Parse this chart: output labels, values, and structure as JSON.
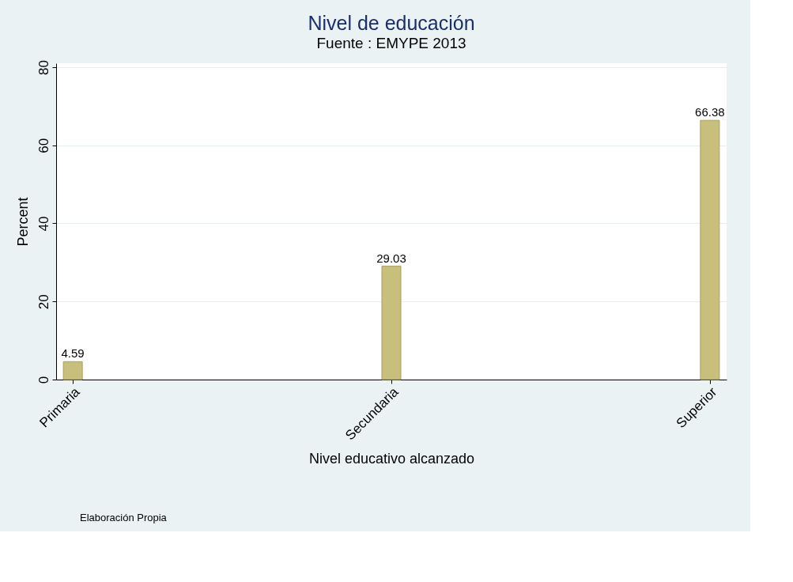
{
  "chart_data": {
    "type": "bar",
    "title": "Nivel de educación",
    "subtitle": "Fuente : EMYPE 2013",
    "xlabel": "Nivel educativo alcanzado",
    "ylabel": "Percent",
    "categories": [
      "Primaria",
      "Secundaria",
      "Superior"
    ],
    "values": [
      4.59,
      29.03,
      66.38
    ],
    "color": "#c8bf7c",
    "ylim": [
      0,
      81
    ],
    "yticks": [
      0,
      20,
      40,
      60,
      80
    ],
    "grid": "y",
    "data_labels": true,
    "annotations": [
      "Elaboración Propia"
    ]
  }
}
